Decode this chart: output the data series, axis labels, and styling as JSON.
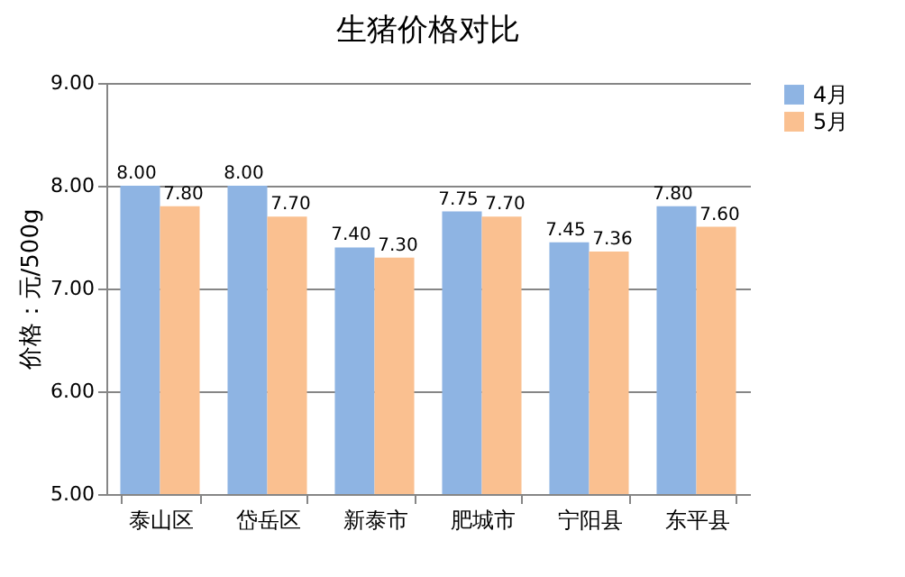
{
  "chart_data": {
    "type": "bar",
    "title": "生猪价格对比",
    "ylabel": "价格：元/500g",
    "categories": [
      "泰山区",
      "岱岳区",
      "新泰市",
      "肥城市",
      "宁阳县",
      "东平县"
    ],
    "series": [
      {
        "name": "4月",
        "color": "#8eb4e3",
        "values": [
          8.0,
          8.0,
          7.4,
          7.75,
          7.45,
          7.8
        ],
        "value_labels": [
          "8.00",
          "8.00",
          "7.40",
          "7.75",
          "7.45",
          "7.80"
        ]
      },
      {
        "name": "5月",
        "color": "#fac090",
        "values": [
          7.8,
          7.7,
          7.3,
          7.7,
          7.36,
          7.6
        ],
        "value_labels": [
          "7.80",
          "7.70",
          "7.30",
          "7.70",
          "7.36",
          "7.60"
        ]
      }
    ],
    "ylim": [
      5,
      9
    ],
    "yticks": [
      {
        "value": 5,
        "label": "5.00"
      },
      {
        "value": 6,
        "label": "6.00"
      },
      {
        "value": 7,
        "label": "7.00"
      },
      {
        "value": 8,
        "label": "8.00"
      },
      {
        "value": 9,
        "label": "9.00"
      }
    ],
    "grid": "y",
    "legend": "right"
  }
}
